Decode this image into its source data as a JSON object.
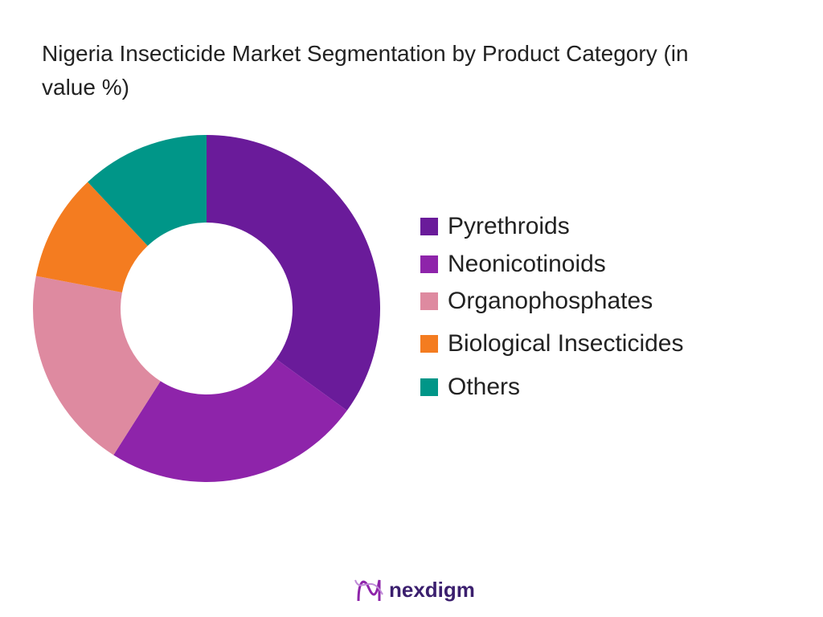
{
  "chart_data": {
    "type": "donut",
    "title": "Nigeria Insecticide Market Segmentation by Product Category (in value %)",
    "categories": [
      "Pyrethroids",
      "Neonicotinoids",
      "Organophosphates",
      "Biological Insecticides",
      "Others"
    ],
    "values": [
      35,
      24,
      19,
      10,
      12
    ],
    "colors": [
      "#6a1b9a",
      "#8e24aa",
      "#de8aa0",
      "#f47c20",
      "#009688"
    ],
    "legend": "right"
  },
  "footer": {
    "brand": "nexdigm"
  }
}
